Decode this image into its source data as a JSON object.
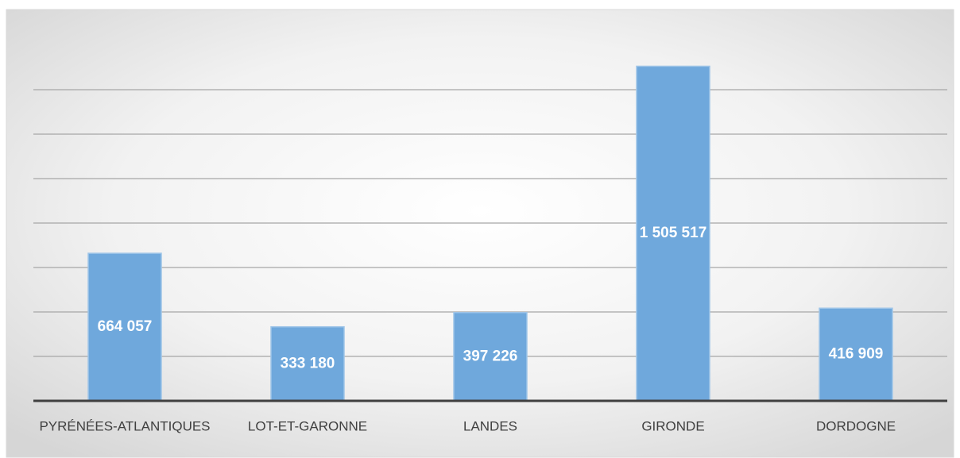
{
  "chart_data": {
    "type": "bar",
    "categories": [
      "PYRÉNÉES-ATLANTIQUES",
      "LOT-ET-GARONNE",
      "LANDES",
      "GIRONDE",
      "DORDOGNE"
    ],
    "values": [
      664057,
      333180,
      397226,
      1505517,
      416909
    ],
    "value_labels": [
      "664 057",
      "333 180",
      "397 226",
      "1 505 517",
      "416 909"
    ],
    "color": "#6fa8dc",
    "ylim": [
      0,
      1600000
    ],
    "yticks": [
      0,
      200000,
      400000,
      600000,
      800000,
      1000000,
      1200000,
      1400000
    ],
    "grid": true
  }
}
